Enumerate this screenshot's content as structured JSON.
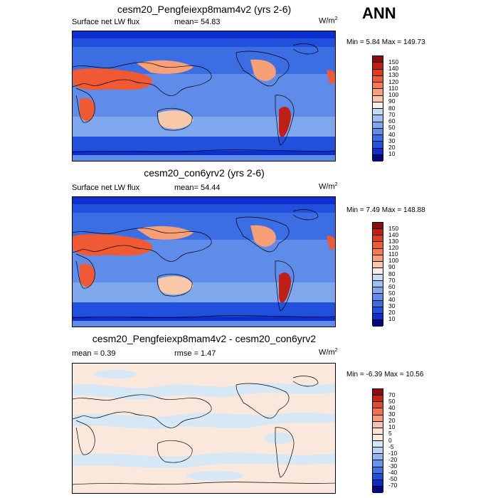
{
  "season": "ANN",
  "chart_data": [
    {
      "type": "heatmap",
      "title": "cesm20_Pengfeiexp8mam4v2 (yrs 2-6)",
      "left_label": "Surface net LW flux",
      "center_label": "mean=  54.83",
      "units": "W/m",
      "units_exp": "2",
      "min_max": "Min =   5.84 Max = 149.73",
      "mean": 54.83,
      "min": 5.84,
      "max": 149.73,
      "levels": [
        "150",
        "140",
        "130",
        "120",
        "110",
        "100",
        "90",
        "80",
        "70",
        "60",
        "50",
        "40",
        "30",
        "20",
        "10"
      ],
      "colors": [
        "#8b0d0d",
        "#bf1f14",
        "#e03b1e",
        "#ef5a34",
        "#f47b4f",
        "#f79f76",
        "#f9c8a8",
        "#f6eee2",
        "#c3dcf3",
        "#9cc0ef",
        "#7fa7ec",
        "#5e8ce8",
        "#3b6ee3",
        "#2150dc",
        "#0e2ed0",
        "#020a78"
      ]
    },
    {
      "type": "heatmap",
      "title": "cesm20_con6yrv2 (yrs 2-6)",
      "left_label": "Surface net LW flux",
      "center_label": "mean=  54.44",
      "units": "W/m",
      "units_exp": "2",
      "min_max": "Min =   7.49 Max = 148.88",
      "mean": 54.44,
      "min": 7.49,
      "max": 148.88,
      "levels": [
        "150",
        "140",
        "130",
        "120",
        "110",
        "100",
        "90",
        "80",
        "70",
        "60",
        "50",
        "40",
        "30",
        "20",
        "10"
      ],
      "colors": [
        "#8b0d0d",
        "#bf1f14",
        "#e03b1e",
        "#ef5a34",
        "#f47b4f",
        "#f79f76",
        "#f9c8a8",
        "#f6eee2",
        "#c3dcf3",
        "#9cc0ef",
        "#7fa7ec",
        "#5e8ce8",
        "#3b6ee3",
        "#2150dc",
        "#0e2ed0",
        "#020a78"
      ]
    },
    {
      "type": "heatmap",
      "title": "cesm20_Pengfeiexp8mam4v2 - cesm20_con6yrv2",
      "left_label": "mean =   0.39",
      "center_label": "rmse =   1.47",
      "units": "W/m",
      "units_exp": "2",
      "min_max": "Min =  -6.39 Max =  10.56",
      "mean": 0.39,
      "rmse": 1.47,
      "min": -6.39,
      "max": 10.56,
      "levels": [
        "70",
        "50",
        "40",
        "30",
        "20",
        "10",
        "5",
        "0",
        "-5",
        "-10",
        "-20",
        "-30",
        "-40",
        "-50",
        "-70"
      ],
      "colors": [
        "#8b0d0d",
        "#c2241a",
        "#e04a2b",
        "#ef7350",
        "#f59b79",
        "#f8c2a7",
        "#fbe2d2",
        "#fbe8dc",
        "#d6e7f6",
        "#b9d4f2",
        "#8fb6ee",
        "#6795e9",
        "#3f73e3",
        "#1f4edb",
        "#0b2bc7",
        "#020a78"
      ]
    }
  ]
}
